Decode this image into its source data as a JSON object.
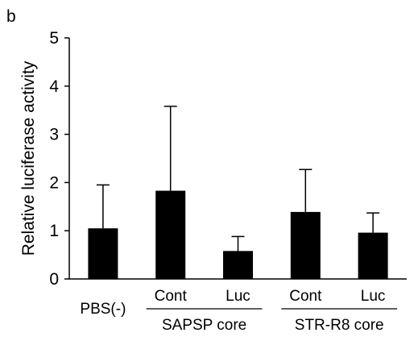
{
  "panel_label": "b",
  "chart_data": {
    "type": "bar",
    "title": "",
    "xlabel": "",
    "ylabel": "Relative luciferase activity",
    "ylim": [
      0,
      5
    ],
    "yticks": [
      0,
      1,
      2,
      3,
      4,
      5
    ],
    "grid": false,
    "legend": "none",
    "categories": [
      "PBS(-)",
      "Cont",
      "Luc",
      "Cont",
      "Luc"
    ],
    "values": [
      1.05,
      1.83,
      0.58,
      1.39,
      0.96
    ],
    "error_upper": [
      0.9,
      1.75,
      0.3,
      0.88,
      0.41
    ],
    "groups": [
      {
        "label": "SAPSP core",
        "categories": [
          1,
          2
        ]
      },
      {
        "label": "STR-R8 core",
        "categories": [
          3,
          4
        ]
      }
    ],
    "bar_color": "#000000"
  }
}
